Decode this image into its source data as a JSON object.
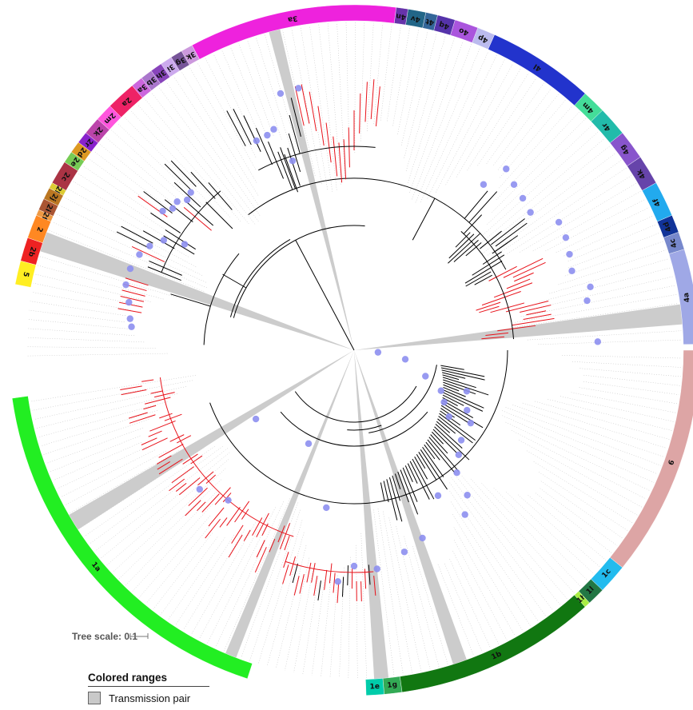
{
  "tree_scale": {
    "label": "Tree scale: 0.1"
  },
  "legend": {
    "title": "Colored ranges",
    "items": [
      {
        "label": "Transmission pair",
        "color": "#c9c9c9"
      }
    ]
  },
  "colors": {
    "branch": "#000000",
    "transmission_branch": "#e8121a",
    "node_marker": "#8d8ff0",
    "transmission_band": "#cccccc",
    "dotted_guide": "#bbbbbb"
  },
  "subtype_ring": [
    {
      "label": "1a",
      "color": "#22ee22"
    },
    {
      "label": "1g",
      "color": "#33aa55"
    },
    {
      "label": "1e",
      "color": "#00ccaa"
    },
    {
      "label": "1b",
      "color": "#117711"
    },
    {
      "label": "1h",
      "color": "#aaee44"
    },
    {
      "label": "1l",
      "color": "#227744"
    },
    {
      "label": "1c",
      "color": "#22bbee"
    },
    {
      "label": "6",
      "color": "#dda5a5"
    },
    {
      "label": "4a",
      "color": "#9fa8e6"
    },
    {
      "label": "4c",
      "color": "#7788cc"
    },
    {
      "label": "4d",
      "color": "#113399"
    },
    {
      "label": "4f",
      "color": "#22aaee"
    },
    {
      "label": "4k",
      "color": "#6644aa"
    },
    {
      "label": "4g",
      "color": "#8855cc"
    },
    {
      "label": "4r",
      "color": "#22bbaa"
    },
    {
      "label": "4m",
      "color": "#44dd99"
    },
    {
      "label": "4l",
      "color": "#2233cc"
    },
    {
      "label": "4p",
      "color": "#bbbbee"
    },
    {
      "label": "4o",
      "color": "#aa55dd"
    },
    {
      "label": "4q",
      "color": "#5533aa"
    },
    {
      "label": "4t",
      "color": "#336699"
    },
    {
      "label": "4v",
      "color": "#226688"
    },
    {
      "label": "4n",
      "color": "#6633aa"
    },
    {
      "label": "3a",
      "color": "#ee22dd"
    },
    {
      "label": "3k",
      "color": "#cc99dd"
    },
    {
      "label": "3g",
      "color": "#775599"
    },
    {
      "label": "3i",
      "color": "#ccaaee"
    },
    {
      "label": "3h",
      "color": "#8844bb"
    },
    {
      "label": "3b",
      "color": "#aa77cc"
    },
    {
      "label": "3a",
      "color": "#cc66dd"
    },
    {
      "label": "2a",
      "color": "#ee2266"
    },
    {
      "label": "2m",
      "color": "#ff55dd"
    },
    {
      "label": "2k",
      "color": "#bb44aa"
    },
    {
      "label": "2r",
      "color": "#8822cc"
    },
    {
      "label": "2d",
      "color": "#dd9922"
    },
    {
      "label": "2e",
      "color": "#77cc55"
    },
    {
      "label": "2c",
      "color": "#aa3344"
    },
    {
      "label": "2l",
      "color": "#ddcc33"
    },
    {
      "label": "2j",
      "color": "#bb7722"
    },
    {
      "label": "2i",
      "color": "#aa5533"
    },
    {
      "label": "2f",
      "color": "#ee9944"
    },
    {
      "label": "2",
      "color": "#ff8822"
    },
    {
      "label": "2b",
      "color": "#ee2222"
    },
    {
      "label": "5",
      "color": "#ffee22"
    }
  ]
}
